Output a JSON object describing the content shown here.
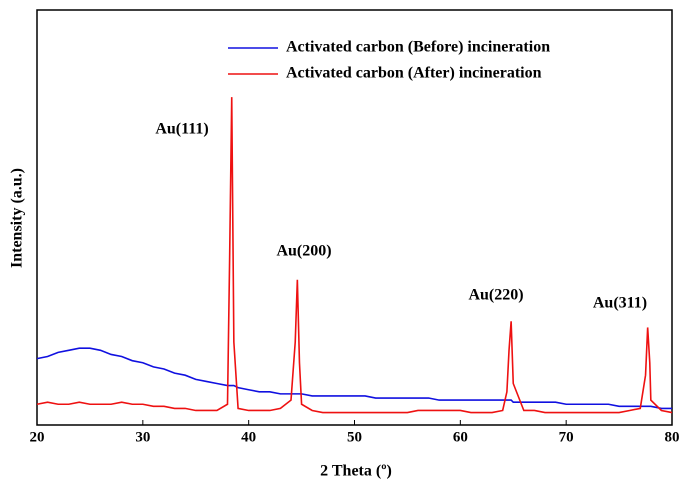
{
  "chart_data": {
    "type": "line",
    "xlabel": "2 Theta (º)",
    "ylabel": "Intensity (a.u.)",
    "x": [
      20,
      21,
      22,
      23,
      24,
      25,
      26,
      27,
      28,
      29,
      30,
      31,
      32,
      33,
      34,
      35,
      36,
      37,
      38,
      38.2,
      38.4,
      38.6,
      39,
      40,
      41,
      42,
      43,
      44,
      44.4,
      44.6,
      44.8,
      45,
      46,
      47,
      48,
      49,
      50,
      51,
      52,
      53,
      54,
      55,
      56,
      57,
      58,
      59,
      60,
      61,
      62,
      63,
      64,
      64.4,
      64.6,
      64.8,
      65,
      66,
      67,
      68,
      69,
      70,
      71,
      72,
      73,
      74,
      75,
      76,
      77,
      77.5,
      77.7,
      77.9,
      78,
      79,
      80
    ],
    "series": [
      {
        "name": "Activated carbon (Before) incineration",
        "color": "#1010e0",
        "values": [
          16,
          16.5,
          17.5,
          18,
          18.5,
          18.5,
          18,
          17,
          16.5,
          15.5,
          15,
          14,
          13.5,
          12.5,
          12,
          11,
          10.5,
          10,
          9.5,
          9.5,
          9.5,
          9.5,
          9,
          8.5,
          8,
          8,
          7.5,
          7.5,
          7.5,
          7.5,
          7.5,
          7.5,
          7,
          7,
          7,
          7,
          7,
          7,
          6.5,
          6.5,
          6.5,
          6.5,
          6.5,
          6.5,
          6,
          6,
          6,
          6,
          6,
          6,
          6,
          6,
          6,
          6,
          5.5,
          5.5,
          5.5,
          5.5,
          5.5,
          5,
          5,
          5,
          5,
          5,
          4.5,
          4.5,
          4.5,
          4.5,
          4.5,
          4.5,
          4.5,
          4,
          4
        ]
      },
      {
        "name": "Activated carbon (After) incineration",
        "color": "#ee1111",
        "values": [
          5,
          5.5,
          5,
          5,
          5.5,
          5,
          5,
          5,
          5.5,
          5,
          5,
          4.5,
          4.5,
          4,
          4,
          3.5,
          3.5,
          3.5,
          5,
          40,
          79,
          20,
          4,
          3.5,
          3.5,
          3.5,
          4,
          6,
          20,
          35,
          15,
          5,
          3.5,
          3,
          3,
          3,
          3,
          3,
          3,
          3,
          3,
          3,
          3.5,
          3.5,
          3.5,
          3.5,
          3.5,
          3,
          3,
          3,
          3.5,
          8,
          18,
          25,
          10,
          3.5,
          3.5,
          3,
          3,
          3,
          3,
          3,
          3,
          3,
          3,
          3.5,
          4,
          12,
          23.5,
          15,
          6,
          3.5,
          3
        ]
      }
    ],
    "annotations": [
      "Au(111)",
      "Au(200)",
      "Au(220)",
      "Au(311)"
    ],
    "xlim": [
      20,
      80
    ],
    "xticks": [
      20,
      30,
      40,
      50,
      60,
      70,
      80
    ],
    "ylim": [
      0,
      100
    ],
    "legend": "upper right"
  }
}
